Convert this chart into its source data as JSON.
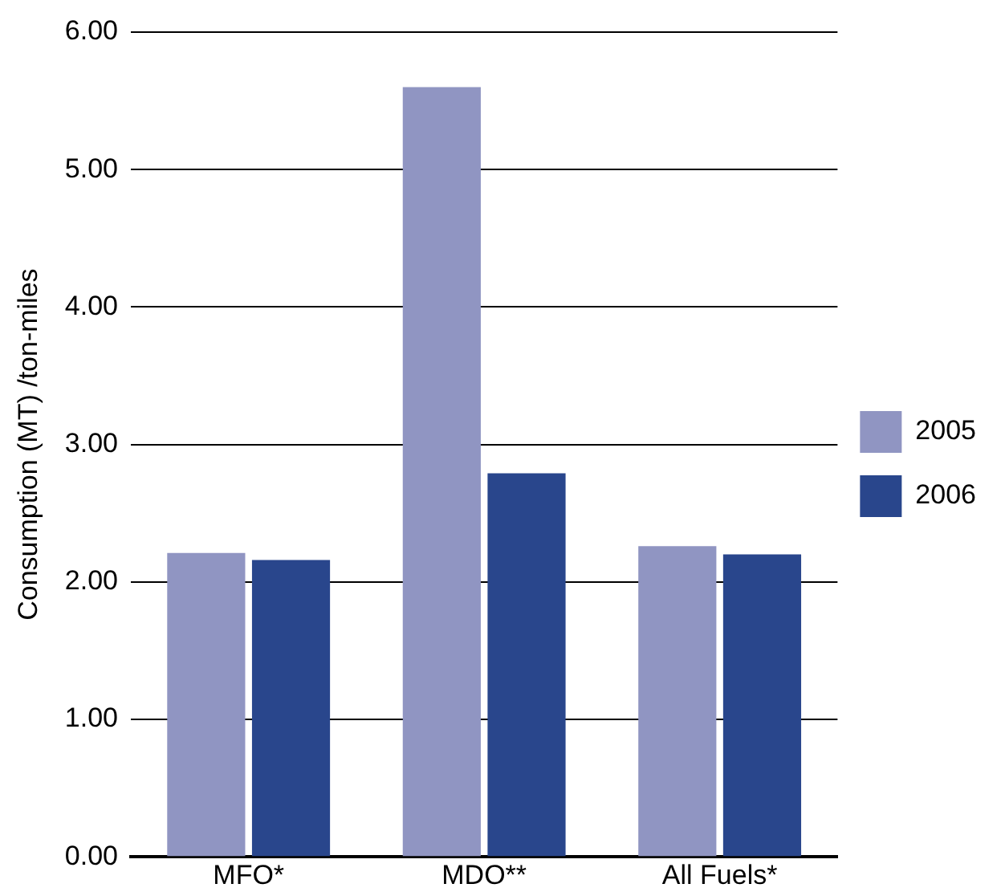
{
  "chart_data": {
    "type": "bar",
    "ylabel": "Consumption (MT) /ton-miles",
    "categories": [
      "MFO*",
      "MDO**",
      "All Fuels*"
    ],
    "series": [
      {
        "name": "2005",
        "color": "#9095c2",
        "values": [
          2.21,
          5.6,
          2.26
        ]
      },
      {
        "name": "2006",
        "color": "#29468c",
        "values": [
          2.16,
          2.79,
          2.2
        ]
      }
    ],
    "ylim": [
      0,
      6
    ],
    "yticks": [
      {
        "value": 0,
        "label": "0.00"
      },
      {
        "value": 1,
        "label": "1.00"
      },
      {
        "value": 2,
        "label": "2.00"
      },
      {
        "value": 3,
        "label": "3.00"
      },
      {
        "value": 4,
        "label": "4.00"
      },
      {
        "value": 5,
        "label": "5.00"
      },
      {
        "value": 6,
        "label": "6.00"
      }
    ],
    "grid": "y",
    "legend": "right"
  }
}
